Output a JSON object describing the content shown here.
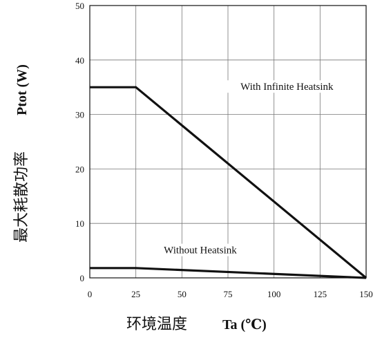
{
  "chart_data": {
    "type": "line",
    "title": "",
    "xlabel_cn": "环境温度",
    "xlabel": "Ta (℃)",
    "ylabel_cn": "最大耗散功率",
    "ylabel": "Ptot (W)",
    "xlim": [
      0,
      150
    ],
    "ylim": [
      0,
      50
    ],
    "x_ticks": [
      0,
      25,
      50,
      75,
      100,
      125,
      150
    ],
    "y_ticks": [
      0,
      10,
      20,
      30,
      40,
      50
    ],
    "grid": true,
    "series": [
      {
        "name": "With Infinite Heatsink",
        "x": [
          0,
          25,
          150
        ],
        "y": [
          35,
          35,
          0
        ]
      },
      {
        "name": "Without Heatsink",
        "x": [
          0,
          25,
          150
        ],
        "y": [
          1.8,
          1.8,
          0
        ]
      }
    ]
  }
}
